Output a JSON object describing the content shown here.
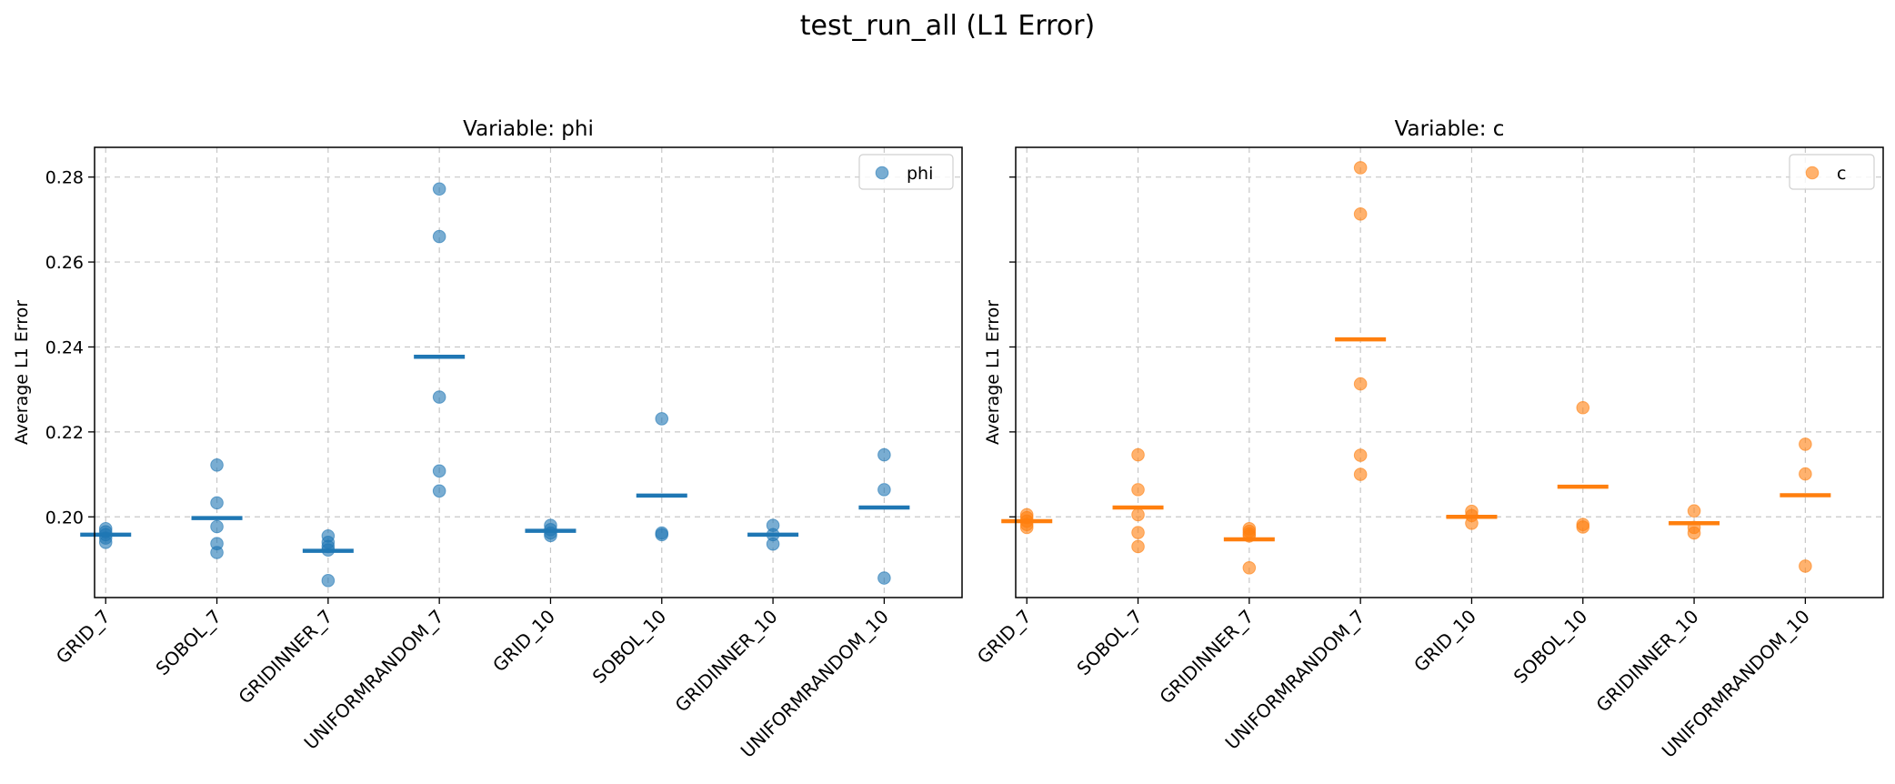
{
  "figure": {
    "title": "test_run_all (L1 Error)"
  },
  "chart_data": [
    {
      "type": "scatter",
      "title": "Variable: phi",
      "xlabel": "",
      "ylabel": "Average L1 Error",
      "ylim": [
        0.181,
        0.287
      ],
      "yticks": [
        0.2,
        0.22,
        0.24,
        0.26,
        0.28
      ],
      "ytick_labels": [
        "0.20",
        "0.22",
        "0.24",
        "0.26",
        "0.28"
      ],
      "grid": true,
      "legend": {
        "placement": "top-right",
        "entries": [
          "phi"
        ]
      },
      "color": "#1f77b4",
      "categories": [
        "GRID_7",
        "SOBOL_7",
        "GRIDINNER_7",
        "UNIFORMRANDOM_7",
        "GRID_10",
        "SOBOL_10",
        "GRIDINNER_10",
        "UNIFORMRANDOM_10"
      ],
      "series": [
        {
          "name": "phi",
          "points": [
            [
              0.1972,
              0.1965,
              0.1958,
              0.195,
              0.194
            ],
            [
              0.2122,
              0.2033,
              0.1977,
              0.1937,
              0.1916
            ],
            [
              0.1955,
              0.194,
              0.193,
              0.1922,
              0.185
            ],
            [
              0.2772,
              0.266,
              0.2282,
              0.2108,
              0.2061
            ],
            [
              0.198,
              0.197,
              0.1962,
              0.1956
            ],
            [
              0.2231,
              0.1962,
              0.1958
            ],
            [
              0.198,
              0.1958,
              0.1936
            ],
            [
              0.2146,
              0.2064,
              0.1856
            ]
          ],
          "means": [
            0.1958,
            0.1997,
            0.192,
            0.2377,
            0.1967,
            0.205,
            0.1958,
            0.2022
          ]
        }
      ]
    },
    {
      "type": "scatter",
      "title": "Variable: c",
      "xlabel": "",
      "ylabel": "Average L1 Error",
      "ylim": [
        0.181,
        0.287
      ],
      "yticks": [
        0.2,
        0.22,
        0.24,
        0.26,
        0.28
      ],
      "ytick_labels": [],
      "grid": true,
      "legend": {
        "placement": "top-right",
        "entries": [
          "c"
        ]
      },
      "color": "#ff7f0e",
      "categories": [
        "GRID_7",
        "SOBOL_7",
        "GRIDINNER_7",
        "UNIFORMRANDOM_7",
        "GRID_10",
        "SOBOL_10",
        "GRIDINNER_10",
        "UNIFORMRANDOM_10"
      ],
      "series": [
        {
          "name": "c",
          "points": [
            [
              0.2005,
              0.1998,
              0.199,
              0.1982,
              0.1975
            ],
            [
              0.2146,
              0.2064,
              0.2005,
              0.1963,
              0.193
            ],
            [
              0.1972,
              0.1966,
              0.196,
              0.1955,
              0.188
            ],
            [
              0.2822,
              0.2713,
              0.2313,
              0.2145,
              0.21
            ],
            [
              0.2013,
              0.2003,
              0.1985
            ],
            [
              0.2257,
              0.1982,
              0.1976
            ],
            [
              0.2014,
              0.1975,
              0.1962
            ],
            [
              0.2171,
              0.2101,
              0.1884
            ]
          ],
          "means": [
            0.199,
            0.2022,
            0.1947,
            0.2418,
            0.2,
            0.2071,
            0.1985,
            0.2051
          ]
        }
      ]
    }
  ]
}
